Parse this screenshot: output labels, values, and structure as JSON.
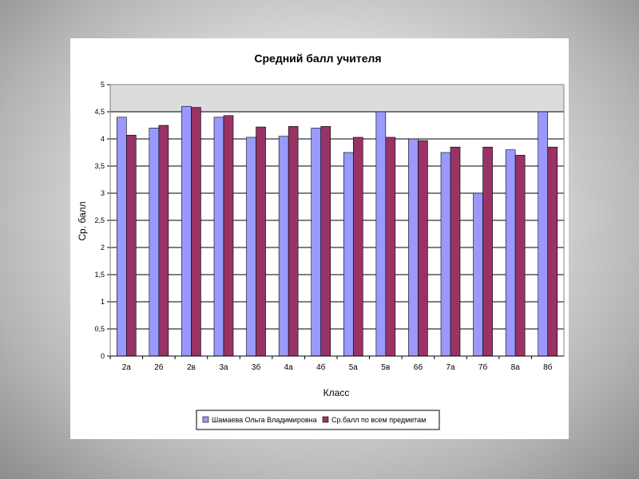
{
  "chart_data": {
    "type": "bar",
    "title": "Средний балл учителя",
    "xlabel": "Класс",
    "ylabel": "Ср. балл",
    "ylim": [
      0,
      5
    ],
    "yticks": [
      "0",
      "0,5",
      "1",
      "1,5",
      "2",
      "2,5",
      "3",
      "3,5",
      "4",
      "4,5",
      "5"
    ],
    "grid": true,
    "legend_position": "bottom",
    "categories": [
      "2а",
      "2б",
      "2в",
      "3а",
      "3б",
      "4а",
      "4б",
      "5а",
      "5в",
      "6б",
      "7а",
      "7б",
      "8а",
      "8б"
    ],
    "series": [
      {
        "name": "Шамаева Ольга Владимировна",
        "color": "#9999ff",
        "values": [
          4.4,
          4.2,
          4.6,
          4.4,
          4.03,
          4.05,
          4.2,
          3.75,
          4.5,
          4.0,
          3.75,
          3.0,
          3.8,
          4.5
        ]
      },
      {
        "name": "Ср.балл по всем предметам",
        "color": "#993366",
        "values": [
          4.07,
          4.25,
          4.58,
          4.43,
          4.22,
          4.23,
          4.23,
          4.03,
          4.03,
          3.97,
          3.85,
          3.85,
          3.7,
          3.85
        ]
      }
    ],
    "plot_bg_colors": [
      "#c0c0c0",
      "#ffffff"
    ]
  }
}
